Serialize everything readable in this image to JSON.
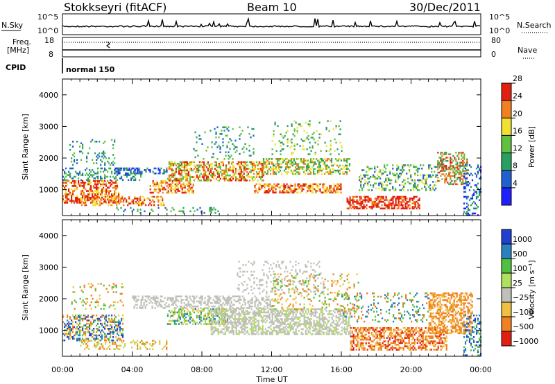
{
  "header": {
    "title": "Stokkseyri (fitACF)",
    "beam": "Beam 10",
    "date": "30/Dec/2011"
  },
  "noise_panel": {
    "left_label": "N.Sky",
    "right_label": "N.Search",
    "left_ticks": [
      "10^5",
      "10^0"
    ],
    "right_ticks": [
      "10^5",
      "10^0"
    ]
  },
  "freq_panel": {
    "left_label_line1": "Freq.",
    "left_label_line2": "[MHz]",
    "right_label": "Nave",
    "left_ticks": [
      "18",
      "8"
    ],
    "right_ticks": [
      "80",
      "0"
    ]
  },
  "cpid_panel": {
    "label": "CPID",
    "program": "normal 150"
  },
  "chart_data": [
    {
      "type": "heatmap",
      "quantity": "Power",
      "ylabel": "Slant Range [km]",
      "xlabel": "",
      "ylim": [
        180,
        4500
      ],
      "xlim_hours": [
        0,
        24
      ],
      "y_ticks": [
        "1000",
        "2000",
        "3000",
        "4000"
      ],
      "colorbar_label": "Power [dB]",
      "colorbar_ticks": [
        "4",
        "8",
        "12",
        "16",
        "20",
        "24",
        "28"
      ],
      "colorbar_colors": [
        "#2020ff",
        "#2060d0",
        "#2aa060",
        "#60c040",
        "#f0e030",
        "#f08020",
        "#e02010"
      ]
    },
    {
      "type": "heatmap",
      "quantity": "Velocity",
      "ylabel": "Slant Range [km]",
      "xlabel": "Time UT",
      "ylim": [
        180,
        4500
      ],
      "xlim_hours": [
        0,
        24
      ],
      "x_ticks": [
        "00:00",
        "04:00",
        "08:00",
        "12:00",
        "16:00",
        "20:00",
        "00:00"
      ],
      "y_ticks": [
        "1000",
        "2000",
        "3000",
        "4000"
      ],
      "colorbar_label": "Velocity [m s⁻¹]",
      "colorbar_ticks": [
        "1000",
        "500",
        "100",
        "25",
        "−25",
        "−100",
        "−500",
        "−1000"
      ],
      "colorbar_colors": [
        "#2040d0",
        "#2a80c0",
        "#50c040",
        "#b0e060",
        "#c0c0b8",
        "#f0c040",
        "#f08020",
        "#e02010"
      ]
    }
  ]
}
